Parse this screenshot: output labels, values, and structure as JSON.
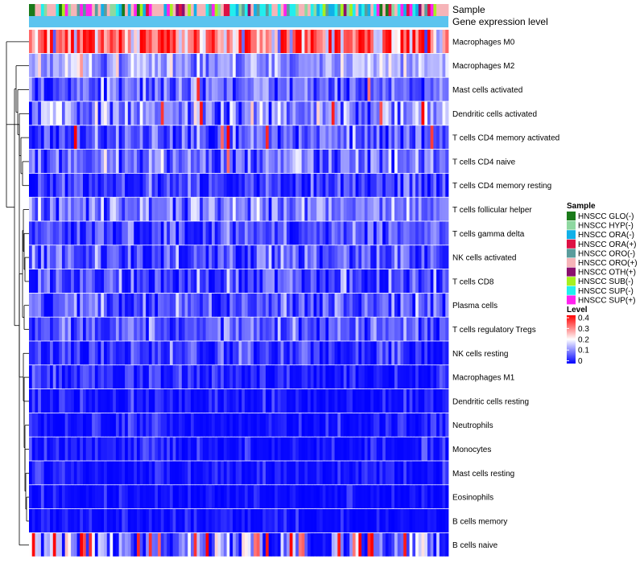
{
  "chart_data": {
    "type": "heatmap",
    "annotation_labels": [
      "Sample",
      "Gene expression level"
    ],
    "rows": [
      {
        "label": "Macrophages M0",
        "mean": 0.28,
        "spread": 0.14,
        "hot": 0.25
      },
      {
        "label": "Macrophages M2",
        "mean": 0.14,
        "spread": 0.06,
        "hot": 0.03
      },
      {
        "label": "Mast cells activated",
        "mean": 0.08,
        "spread": 0.06,
        "hot": 0.02
      },
      {
        "label": "Dendritic cells activated",
        "mean": 0.11,
        "spread": 0.07,
        "hot": 0.05
      },
      {
        "label": "T cells CD4 memory activated",
        "mean": 0.07,
        "spread": 0.06,
        "hot": 0.02
      },
      {
        "label": "T cells CD4 naive",
        "mean": 0.09,
        "spread": 0.07,
        "hot": 0.01
      },
      {
        "label": "T cells CD4 memory resting",
        "mean": 0.04,
        "spread": 0.05,
        "hot": 0.0
      },
      {
        "label": "T cells follicular helper",
        "mean": 0.1,
        "spread": 0.06,
        "hot": 0.01
      },
      {
        "label": "T cells gamma delta",
        "mean": 0.06,
        "spread": 0.06,
        "hot": 0.0
      },
      {
        "label": "NK cells activated",
        "mean": 0.06,
        "spread": 0.06,
        "hot": 0.0
      },
      {
        "label": "T cells CD8",
        "mean": 0.05,
        "spread": 0.06,
        "hot": 0.0
      },
      {
        "label": "Plasma cells",
        "mean": 0.07,
        "spread": 0.06,
        "hot": 0.0
      },
      {
        "label": "T cells regulatory  Tregs",
        "mean": 0.07,
        "spread": 0.05,
        "hot": 0.0
      },
      {
        "label": "NK cells resting",
        "mean": 0.04,
        "spread": 0.05,
        "hot": 0.0
      },
      {
        "label": "Macrophages M1",
        "mean": 0.02,
        "spread": 0.04,
        "hot": 0.0
      },
      {
        "label": "Dendritic cells resting",
        "mean": 0.01,
        "spread": 0.04,
        "hot": 0.0
      },
      {
        "label": "Neutrophils",
        "mean": 0.01,
        "spread": 0.04,
        "hot": 0.0
      },
      {
        "label": "Monocytes",
        "mean": 0.01,
        "spread": 0.04,
        "hot": 0.0
      },
      {
        "label": "Mast cells resting",
        "mean": 0.01,
        "spread": 0.035,
        "hot": 0.0
      },
      {
        "label": "Eosinophils",
        "mean": 0.005,
        "spread": 0.03,
        "hot": 0.0
      },
      {
        "label": "B cells memory",
        "mean": 0.005,
        "spread": 0.03,
        "hot": 0.0
      },
      {
        "label": "B cells naive",
        "mean": 0.09,
        "spread": 0.1,
        "hot": 0.12
      }
    ],
    "num_samples": 140,
    "legend_sample": {
      "title": "Sample",
      "items": [
        {
          "label": "HNSCC GLO(-)",
          "color": "#1a7a1a"
        },
        {
          "label": "HNSCC HYP(-)",
          "color": "#8ed8a0"
        },
        {
          "label": "HNSCC ORA(-)",
          "color": "#11b0e8"
        },
        {
          "label": "HNSCC ORA(+)",
          "color": "#dd1144"
        },
        {
          "label": "HNSCC ORO(-)",
          "color": "#5a9c9c"
        },
        {
          "label": "HNSCC ORO(+)",
          "color": "#f6b4b8"
        },
        {
          "label": "HNSCC OTH(+)",
          "color": "#8b0f6e"
        },
        {
          "label": "HNSCC SUB(-)",
          "color": "#a6f020"
        },
        {
          "label": "HNSCC SUP(-)",
          "color": "#22eeee"
        },
        {
          "label": "HNSCC SUP(+)",
          "color": "#ff22ee"
        }
      ]
    },
    "legend_level": {
      "title": "Level",
      "ticks": [
        "0.4",
        "0.3",
        "0.2",
        "0.1",
        "0"
      ],
      "range": [
        0,
        0.4
      ],
      "colors": {
        "low": "#0000ff",
        "mid": "#ffffff",
        "high": "#ff0000"
      }
    },
    "expression_bar_color": "#5bc4ef"
  }
}
